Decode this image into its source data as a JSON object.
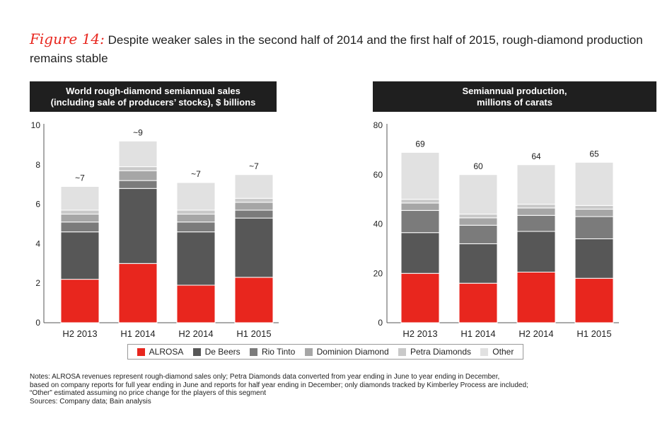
{
  "figure": {
    "label": "Figure 14:",
    "title": "Despite weaker sales in the second half of 2014 and the first half of 2015, rough-diamond production remains stable"
  },
  "panels": [
    {
      "header_line1": "World rough-diamond semiannual sales",
      "header_line2": "(including sale of producers’ stocks), $ billions"
    },
    {
      "header_line1": "Semiannual production,",
      "header_line2": "millions of carats"
    }
  ],
  "legend": {
    "items": [
      {
        "label": "ALROSA",
        "color": "#e8261e"
      },
      {
        "label": "De Beers",
        "color": "#575757"
      },
      {
        "label": "Rio Tinto",
        "color": "#7b7b7b"
      },
      {
        "label": "Dominion Diamond",
        "color": "#a6a6a6"
      },
      {
        "label": "Petra Diamonds",
        "color": "#c9c9c9"
      },
      {
        "label": "Other",
        "color": "#e1e1e1"
      }
    ]
  },
  "chart_data": [
    {
      "type": "bar",
      "stacked": true,
      "title": "World rough-diamond semiannual sales (including sale of producers’ stocks), $ billions",
      "categories": [
        "H2 2013",
        "H1 2014",
        "H2 2014",
        "H1 2015"
      ],
      "ylim": [
        0,
        10
      ],
      "yticks": [
        "0",
        "2",
        "4",
        "6",
        "8",
        "10"
      ],
      "totals_labels": [
        "~7",
        "~9",
        "~7",
        "~7"
      ],
      "series": [
        {
          "name": "ALROSA",
          "values": [
            2.2,
            3.0,
            1.9,
            2.3
          ]
        },
        {
          "name": "De Beers",
          "values": [
            2.4,
            3.8,
            2.7,
            3.0
          ]
        },
        {
          "name": "Rio Tinto",
          "values": [
            0.5,
            0.4,
            0.5,
            0.4
          ]
        },
        {
          "name": "Dominion Diamond",
          "values": [
            0.4,
            0.5,
            0.4,
            0.4
          ]
        },
        {
          "name": "Petra Diamonds",
          "values": [
            0.2,
            0.2,
            0.2,
            0.2
          ]
        },
        {
          "name": "Other",
          "values": [
            1.2,
            1.3,
            1.4,
            1.2
          ]
        }
      ]
    },
    {
      "type": "bar",
      "stacked": true,
      "title": "Semiannual production, millions of carats",
      "categories": [
        "H2 2013",
        "H1 2014",
        "H2 2014",
        "H1 2015"
      ],
      "ylim": [
        0,
        80
      ],
      "yticks": [
        "0",
        "20",
        "40",
        "60",
        "80"
      ],
      "totals_labels": [
        "69",
        "60",
        "64",
        "65"
      ],
      "series": [
        {
          "name": "ALROSA",
          "values": [
            20,
            16,
            20.5,
            18
          ]
        },
        {
          "name": "De Beers",
          "values": [
            16.5,
            16,
            16.5,
            16
          ]
        },
        {
          "name": "Rio Tinto",
          "values": [
            9,
            7.5,
            6.5,
            9
          ]
        },
        {
          "name": "Dominion Diamond",
          "values": [
            3,
            3,
            3,
            3
          ]
        },
        {
          "name": "Petra Diamonds",
          "values": [
            1.5,
            1.5,
            1.5,
            1.5
          ]
        },
        {
          "name": "Other",
          "values": [
            19,
            16,
            16,
            17.5
          ]
        }
      ]
    }
  ],
  "notes": [
    "Notes: ALROSA revenues represent rough-diamond sales only; Petra Diamonds data converted from year ending in June to year ending in December,",
    "based on company reports for full year ending in June and reports for half year ending in December; only diamonds tracked by Kimberley Process are included;",
    "“Other” estimated assuming no price change for the players of this segment",
    "Sources: Company data; Bain analysis"
  ]
}
